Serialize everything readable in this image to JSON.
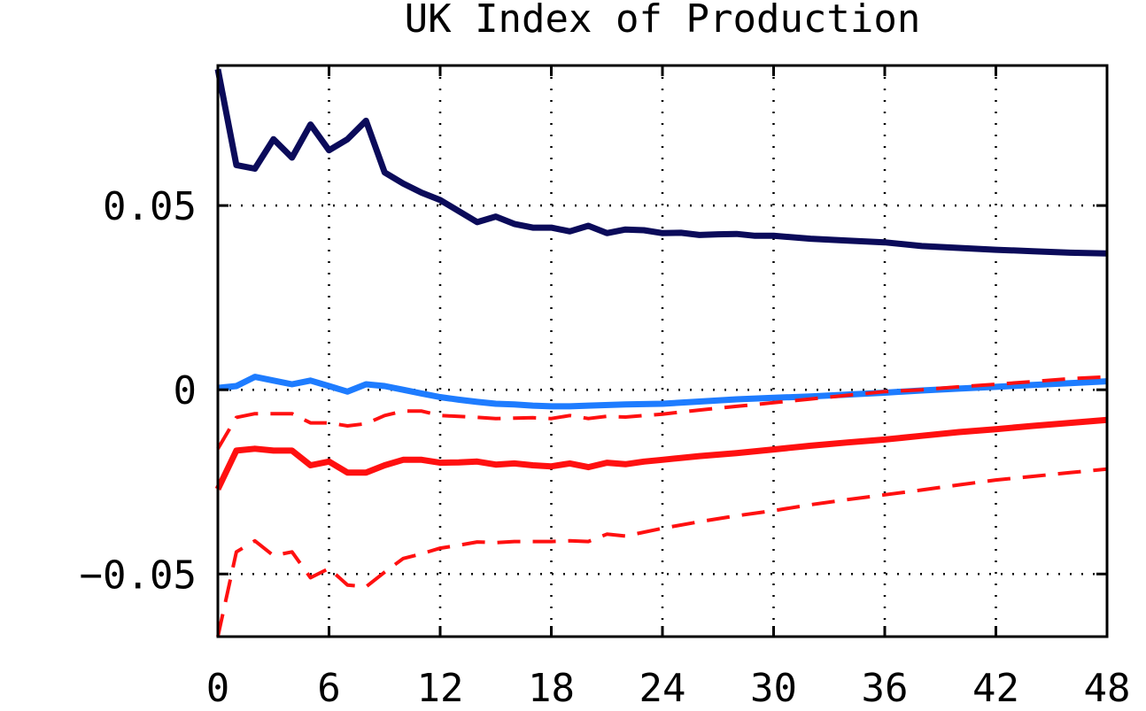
{
  "chart_data": {
    "type": "line",
    "title": "UK Index of Production",
    "xlabel": "",
    "ylabel": "",
    "xlim": [
      0,
      48
    ],
    "ylim": [
      -0.067,
      0.088
    ],
    "xticks": [
      0,
      6,
      12,
      18,
      24,
      30,
      36,
      42,
      48
    ],
    "yticks": [
      -0.05,
      0,
      0.05
    ],
    "ytick_labels": [
      "−0.05",
      "0",
      "0.05"
    ],
    "grid": true,
    "legend": "none",
    "series": [
      {
        "color": "#0b0b5a",
        "style": "solid",
        "width": 7,
        "x": [
          0,
          1,
          2,
          3,
          4,
          5,
          6,
          7,
          8,
          9,
          10,
          11,
          12,
          13,
          14,
          15,
          16,
          17,
          18,
          19,
          20,
          21,
          22,
          23,
          24,
          25,
          26,
          27,
          28,
          29,
          30,
          32,
          34,
          36,
          38,
          40,
          42,
          44,
          46,
          48
        ],
        "y": [
          0.087,
          0.061,
          0.06,
          0.068,
          0.063,
          0.072,
          0.065,
          0.068,
          0.073,
          0.059,
          0.056,
          0.0535,
          0.0515,
          0.0485,
          0.0455,
          0.047,
          0.045,
          0.044,
          0.044,
          0.043,
          0.0445,
          0.0425,
          0.0435,
          0.0433,
          0.0425,
          0.0426,
          0.042,
          0.0422,
          0.0423,
          0.0418,
          0.0418,
          0.041,
          0.0405,
          0.04,
          0.039,
          0.0385,
          0.038,
          0.0376,
          0.0372,
          0.037
        ]
      },
      {
        "color": "#1e7cff",
        "style": "solid",
        "width": 7,
        "x": [
          0,
          1,
          2,
          3,
          4,
          5,
          6,
          7,
          8,
          9,
          10,
          11,
          12,
          13,
          14,
          15,
          16,
          17,
          18,
          19,
          20,
          22,
          24,
          26,
          28,
          30,
          32,
          34,
          36,
          38,
          40,
          42,
          44,
          46,
          48
        ],
        "y": [
          0.0005,
          0.001,
          0.0035,
          0.0025,
          0.0015,
          0.0025,
          0.001,
          -0.0005,
          0.0015,
          0.001,
          0.0,
          -0.001,
          -0.002,
          -0.0027,
          -0.0033,
          -0.0038,
          -0.004,
          -0.0043,
          -0.0045,
          -0.0045,
          -0.0043,
          -0.004,
          -0.0038,
          -0.0032,
          -0.0026,
          -0.0022,
          -0.0018,
          -0.0013,
          -0.0008,
          -0.0002,
          0.0003,
          0.0008,
          0.0013,
          0.0018,
          0.0023
        ]
      },
      {
        "color": "#ff1010",
        "style": "solid",
        "width": 7,
        "x": [
          0,
          1,
          2,
          3,
          4,
          5,
          6,
          7,
          8,
          9,
          10,
          11,
          12,
          13,
          14,
          15,
          16,
          17,
          18,
          19,
          20,
          21,
          22,
          23,
          24,
          26,
          28,
          30,
          32,
          34,
          36,
          38,
          40,
          42,
          44,
          46,
          48
        ],
        "y": [
          -0.027,
          -0.0165,
          -0.016,
          -0.0165,
          -0.0165,
          -0.0205,
          -0.0195,
          -0.0225,
          -0.0225,
          -0.0205,
          -0.019,
          -0.019,
          -0.0198,
          -0.0197,
          -0.0195,
          -0.0203,
          -0.02,
          -0.0205,
          -0.0208,
          -0.02,
          -0.021,
          -0.0198,
          -0.0202,
          -0.0195,
          -0.019,
          -0.018,
          -0.0172,
          -0.0162,
          -0.0152,
          -0.0143,
          -0.0135,
          -0.0125,
          -0.0115,
          -0.0107,
          -0.0098,
          -0.009,
          -0.0082
        ]
      },
      {
        "color": "#ff1010",
        "style": "dashed",
        "width": 4,
        "x": [
          0,
          1,
          2,
          3,
          4,
          5,
          6,
          7,
          8,
          9,
          10,
          11,
          12,
          13,
          14,
          15,
          16,
          17,
          18,
          19,
          20,
          21,
          22,
          24,
          26,
          28,
          30,
          32,
          34,
          36,
          38,
          40,
          42,
          44,
          46,
          48
        ],
        "y": [
          -0.016,
          -0.0075,
          -0.0065,
          -0.0065,
          -0.0065,
          -0.009,
          -0.009,
          -0.0098,
          -0.0092,
          -0.007,
          -0.0058,
          -0.0058,
          -0.007,
          -0.0072,
          -0.0075,
          -0.0078,
          -0.0077,
          -0.0076,
          -0.0078,
          -0.007,
          -0.0078,
          -0.0072,
          -0.0074,
          -0.0066,
          -0.0055,
          -0.0045,
          -0.0035,
          -0.0025,
          -0.0015,
          -0.0005,
          0.0,
          0.0008,
          0.0015,
          0.0022,
          0.003,
          0.0035
        ]
      },
      {
        "color": "#ff1010",
        "style": "dashed",
        "width": 4,
        "x": [
          0,
          1,
          2,
          3,
          4,
          5,
          6,
          7,
          8,
          9,
          10,
          11,
          12,
          13,
          14,
          15,
          16,
          17,
          18,
          19,
          20,
          21,
          22,
          24,
          26,
          28,
          30,
          32,
          34,
          36,
          38,
          40,
          42,
          44,
          46,
          48
        ],
        "y": [
          -0.067,
          -0.044,
          -0.041,
          -0.045,
          -0.044,
          -0.051,
          -0.0485,
          -0.053,
          -0.0535,
          -0.0495,
          -0.0458,
          -0.0445,
          -0.043,
          -0.0422,
          -0.0413,
          -0.0415,
          -0.0412,
          -0.0412,
          -0.0412,
          -0.041,
          -0.0412,
          -0.0392,
          -0.0397,
          -0.0376,
          -0.0358,
          -0.0342,
          -0.0328,
          -0.0312,
          -0.0298,
          -0.0285,
          -0.0272,
          -0.0258,
          -0.0245,
          -0.0235,
          -0.0225,
          -0.0215
        ]
      }
    ]
  }
}
